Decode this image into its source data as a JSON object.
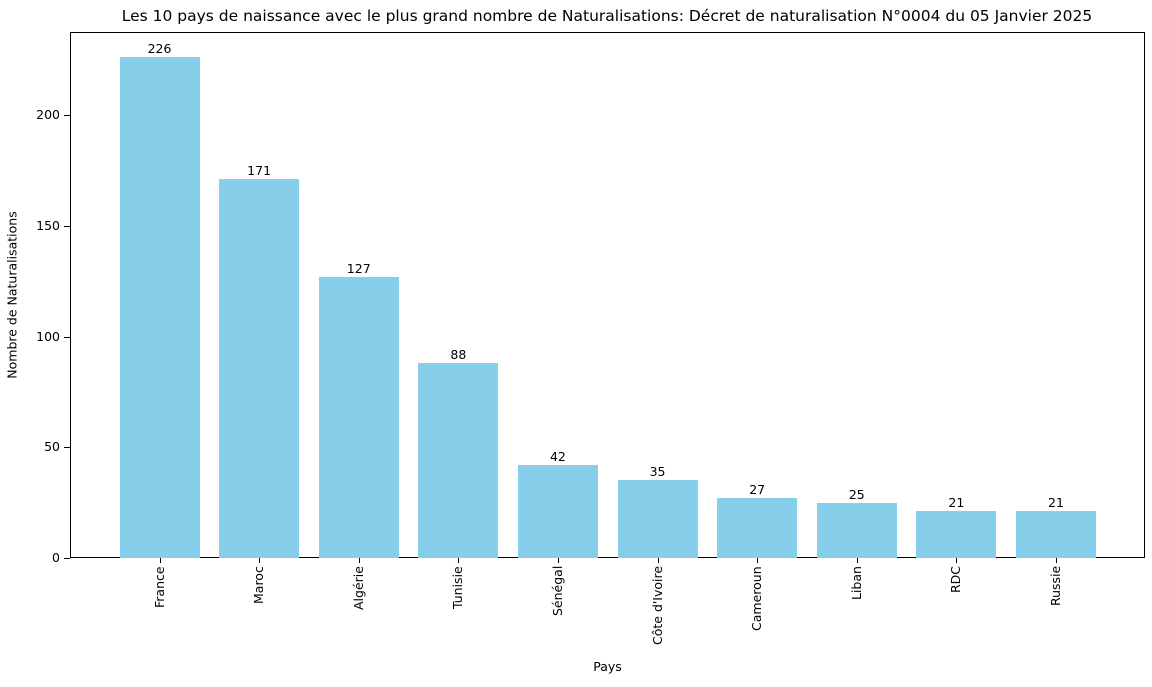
{
  "chart_data": {
    "type": "bar",
    "title": "Les 10 pays de naissance avec le plus grand nombre de Naturalisations: Décret de naturalisation N°0004 du 05 Janvier 2025",
    "xlabel": "Pays",
    "ylabel": "Nombre de Naturalisations",
    "categories": [
      "France",
      "Maroc",
      "Algérie",
      "Tunisie",
      "Sénégal",
      "Côte d'Ivoire",
      "Cameroun",
      "Liban",
      "RDC",
      "Russie"
    ],
    "values": [
      226,
      171,
      127,
      88,
      42,
      35,
      27,
      25,
      21,
      21
    ],
    "yticks": [
      0,
      50,
      100,
      150,
      200
    ],
    "ylim": [
      0,
      237.5
    ],
    "bar_color": "#87ceeb",
    "grid": false,
    "legend": null,
    "xtick_rotation": 90,
    "data_labels": true
  }
}
